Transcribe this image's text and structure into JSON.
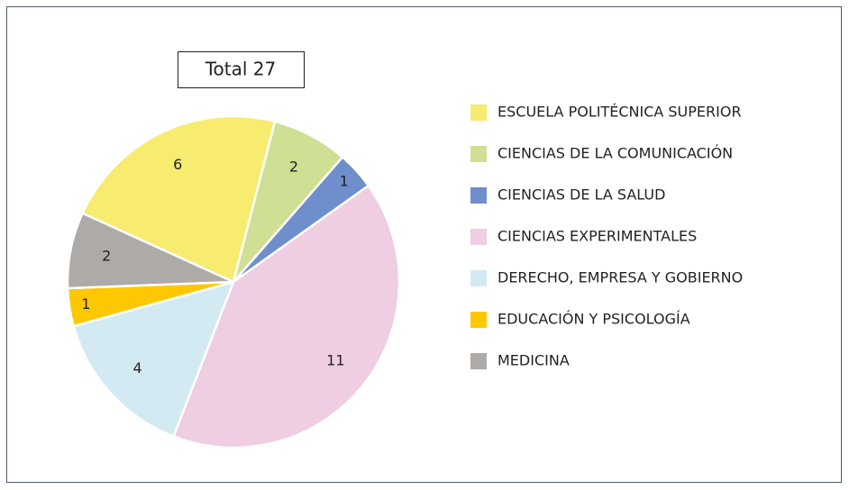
{
  "chart_data": {
    "type": "pie",
    "annotation": "Total 27",
    "categories": [
      "ESCUELA POLITÉCNICA SUPERIOR",
      "CIENCIAS DE LA COMUNICACIÓN",
      "CIENCIAS DE LA SALUD",
      "CIENCIAS EXPERIMENTALES",
      "DERECHO, EMPRESA Y GOBIERNO",
      "EDUCACIÓN Y PSICOLOGÍA",
      "MEDICINA"
    ],
    "values": [
      6,
      2,
      1,
      11,
      4,
      1,
      2
    ],
    "colors": [
      "#f7eb70",
      "#cfdf93",
      "#6f8fcc",
      "#efcde3",
      "#d4eaf2",
      "#fdc800",
      "#aeaaa8"
    ],
    "legend": "right"
  }
}
